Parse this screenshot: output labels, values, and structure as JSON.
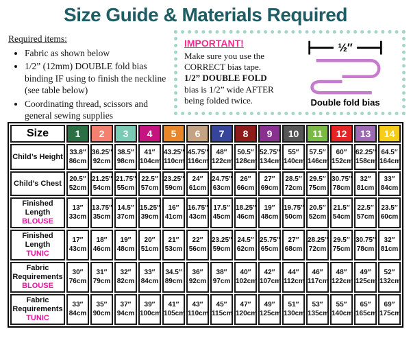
{
  "title": "Size Guide & Materials Required",
  "required_items": {
    "heading": "Required items:",
    "items": [
      "Fabric as shown below",
      "1/2” (12mm) DOUBLE fold bias binding IF using to finish the neckline (see table below)",
      "Coordinating thread, scissors and general sewing supplies"
    ]
  },
  "important_box": {
    "heading": "IMPORTANT!",
    "line1": "Make sure you use the CORRECT bias tape.",
    "bold_line": "1/2” DOUBLE FOLD",
    "line2": "bias is 1/2” wide AFTER being folded twice.",
    "ruler_label": "½″",
    "bias_label": "Double fold bias"
  },
  "colors": {
    "title_teal": "#1f5d64",
    "important_pink": "#f32a90",
    "sub_magenta": "#f511a1",
    "bias_purple": "#c77bce",
    "box_border_mint": "#a3d6c9"
  },
  "size_table": {
    "header_label": "Size",
    "sizes": [
      "1",
      "2",
      "3",
      "4",
      "5",
      "6",
      "7",
      "8",
      "9",
      "10",
      "11",
      "12",
      "13",
      "14"
    ],
    "size_colors": [
      "#2b6f45",
      "#f4806f",
      "#7accb4",
      "#c51380",
      "#e8862a",
      "#c3a384",
      "#36459b",
      "#8e1b1b",
      "#8a3090",
      "#565656",
      "#7cb844",
      "#e62425",
      "#9c6bb4",
      "#f6cd18"
    ],
    "rows": [
      {
        "label": "Child’s Height",
        "sub": "",
        "values": [
          [
            "33.8″",
            "86cm"
          ],
          [
            "36.25″",
            "92cm"
          ],
          [
            "38.5″",
            "98cm"
          ],
          [
            "41″",
            "104cm"
          ],
          [
            "43.25″",
            "110cm"
          ],
          [
            "45.75″",
            "116cm"
          ],
          [
            "48″",
            "122cm"
          ],
          [
            "50.5″",
            "128cm"
          ],
          [
            "52.75″",
            "134cm"
          ],
          [
            "55″",
            "140cm"
          ],
          [
            "57.5″",
            "146cm"
          ],
          [
            "60″",
            "152cm"
          ],
          [
            "62.25″",
            "158cm"
          ],
          [
            "64.5″",
            "164cm"
          ]
        ]
      },
      {
        "label": "Child’s Chest",
        "sub": "",
        "values": [
          [
            "20.5″",
            "52cm"
          ],
          [
            "21.25″",
            "54cm"
          ],
          [
            "21.75″",
            "55cm"
          ],
          [
            "22.5″",
            "57cm"
          ],
          [
            "23.25″",
            "59cm"
          ],
          [
            "24″",
            "61cm"
          ],
          [
            "24.75″",
            "63cm"
          ],
          [
            "26″",
            "66cm"
          ],
          [
            "27″",
            "69cm"
          ],
          [
            "28.5″",
            "72cm"
          ],
          [
            "29.5″",
            "75cm"
          ],
          [
            "30.75″",
            "78cm"
          ],
          [
            "32″",
            "81cm"
          ],
          [
            "33″",
            "84cm"
          ]
        ]
      },
      {
        "label": "Finished Length",
        "sub": "BLOUSE",
        "values": [
          [
            "13″",
            "33cm"
          ],
          [
            "13.75″",
            "35cm"
          ],
          [
            "14.5″",
            "37cm"
          ],
          [
            "15.25″",
            "39cm"
          ],
          [
            "16″",
            "41cm"
          ],
          [
            "16.75″",
            "43cm"
          ],
          [
            "17.5″",
            "45cm"
          ],
          [
            "18.25″",
            "46cm"
          ],
          [
            "19″",
            "48cm"
          ],
          [
            "19.75″",
            "50cm"
          ],
          [
            "20.5″",
            "52cm"
          ],
          [
            "21.5″",
            "54cm"
          ],
          [
            "22.5″",
            "57cm"
          ],
          [
            "23.5″",
            "60cm"
          ]
        ]
      },
      {
        "label": "Finished Length",
        "sub": "TUNIC",
        "values": [
          [
            "17″",
            "43cm"
          ],
          [
            "18″",
            "46cm"
          ],
          [
            "19″",
            "48cm"
          ],
          [
            "20″",
            "51cm"
          ],
          [
            "21″",
            "53cm"
          ],
          [
            "22″",
            "56cm"
          ],
          [
            "23.25″",
            "59cm"
          ],
          [
            "24.5″",
            "62cm"
          ],
          [
            "25.75″",
            "65cm"
          ],
          [
            "27″",
            "68cm"
          ],
          [
            "28.25″",
            "72cm"
          ],
          [
            "29.5″",
            "75cm"
          ],
          [
            "30.75″",
            "78cm"
          ],
          [
            "32″",
            "81cm"
          ]
        ]
      },
      {
        "label": "Fabric Requirements",
        "sub": "BLOUSE",
        "values": [
          [
            "30″",
            "76cm"
          ],
          [
            "31″",
            "79cm"
          ],
          [
            "32″",
            "82cm"
          ],
          [
            "33″",
            "84cm"
          ],
          [
            "34.5″",
            "89cm"
          ],
          [
            "36″",
            "92cm"
          ],
          [
            "38″",
            "97cm"
          ],
          [
            "40″",
            "102cm"
          ],
          [
            "42″",
            "107cm"
          ],
          [
            "44″",
            "112cm"
          ],
          [
            "46″",
            "117cm"
          ],
          [
            "48″",
            "122cm"
          ],
          [
            "49″",
            "125cm"
          ],
          [
            "52″",
            "132cm"
          ]
        ]
      },
      {
        "label": "Fabric Requirements",
        "sub": "TUNIC",
        "values": [
          [
            "33″",
            "84cm"
          ],
          [
            "35″",
            "90cm"
          ],
          [
            "37″",
            "94cm"
          ],
          [
            "39″",
            "100cm"
          ],
          [
            "41″",
            "105cm"
          ],
          [
            "43″",
            "110cm"
          ],
          [
            "45″",
            "115cm"
          ],
          [
            "47″",
            "120cm"
          ],
          [
            "49″",
            "125cm"
          ],
          [
            "51″",
            "130cm"
          ],
          [
            "53″",
            "135cm"
          ],
          [
            "55″",
            "140cm"
          ],
          [
            "65″",
            "165cm"
          ],
          [
            "69″",
            "175cm"
          ]
        ]
      }
    ]
  }
}
